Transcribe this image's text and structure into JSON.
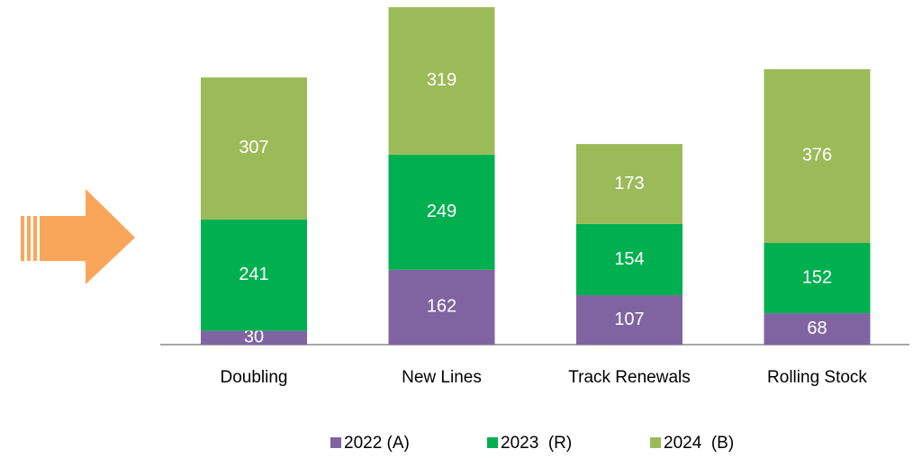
{
  "chart_data": {
    "type": "stacked_bar",
    "categories": [
      "Doubling",
      "New Lines",
      "Track Renewals",
      "Rolling Stock"
    ],
    "series": [
      {
        "name": "2022 (A)",
        "color": "#8064a2",
        "values": [
          30,
          162,
          107,
          68
        ]
      },
      {
        "name": "2023  (R)",
        "color": "#00b050",
        "values": [
          241,
          249,
          154,
          152
        ]
      },
      {
        "name": "2024  (B)",
        "color": "#9bbb59",
        "values": [
          307,
          319,
          173,
          376
        ]
      }
    ]
  }
}
